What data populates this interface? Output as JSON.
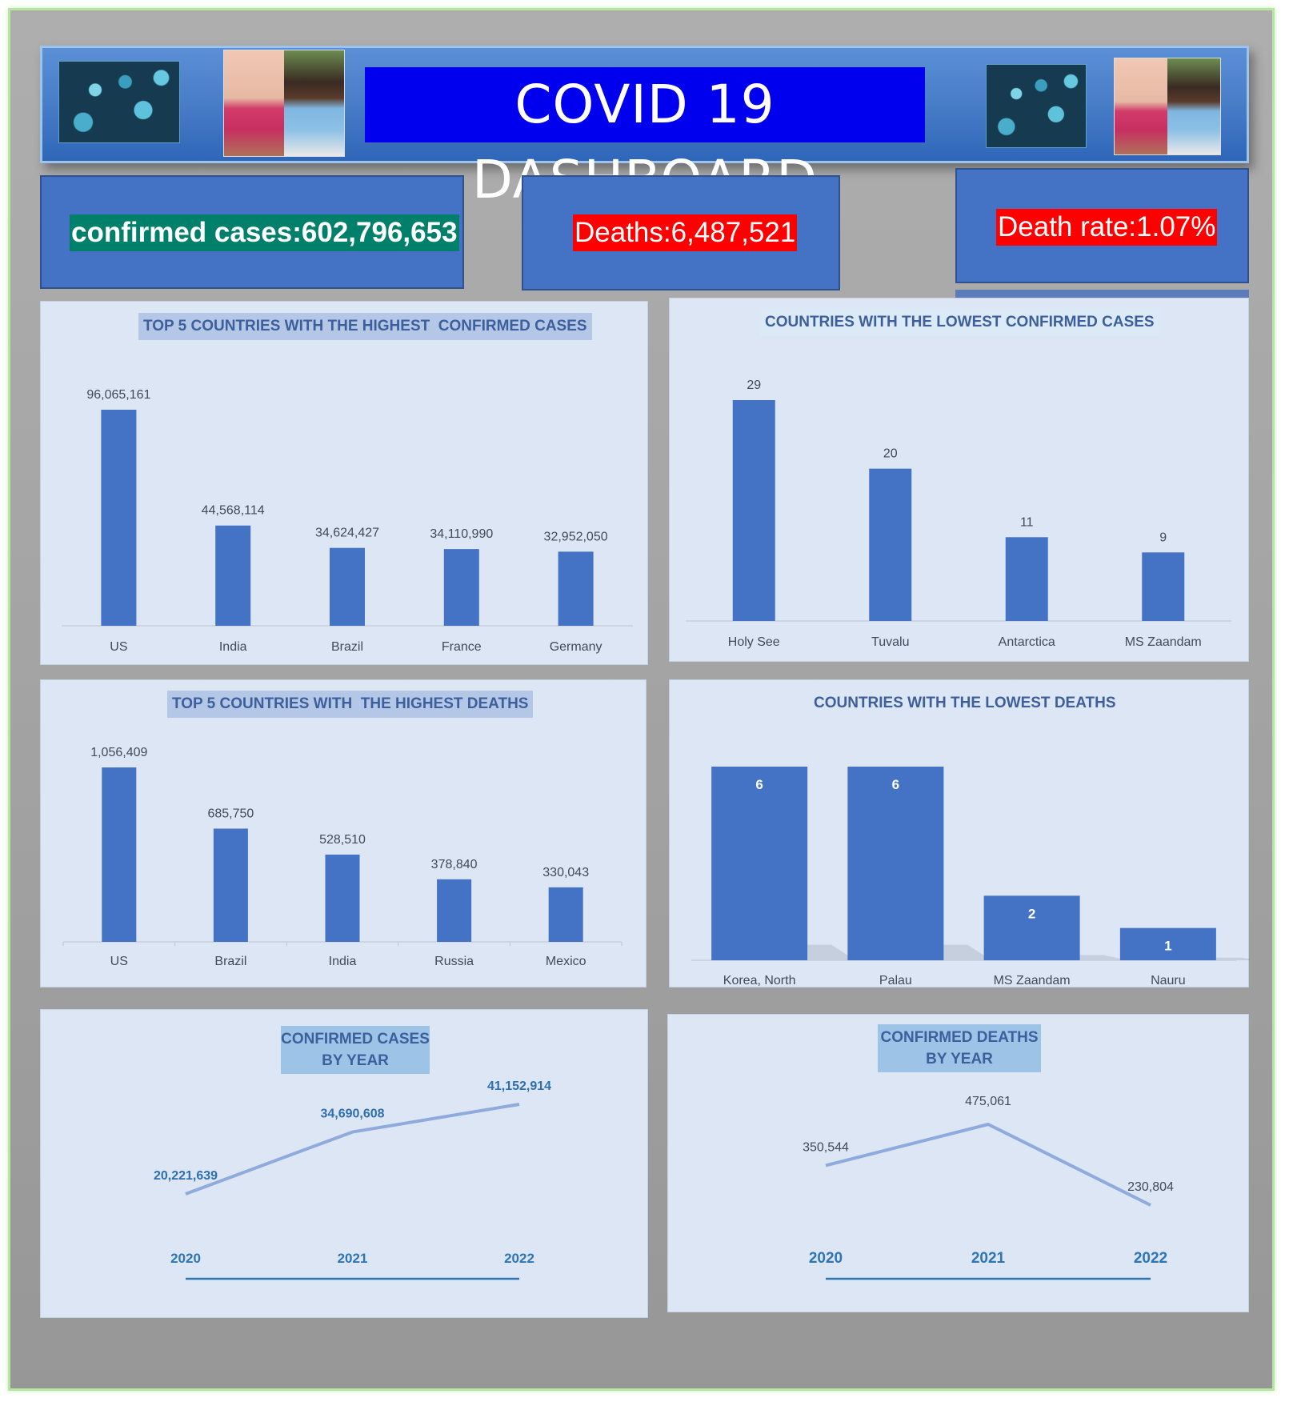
{
  "header": {
    "title": "COVID 19 DASHBOARD",
    "decor_icons": [
      "virus-image",
      "masked-people-image"
    ]
  },
  "kpis": {
    "confirmed": "confirmed cases:602,796,653",
    "deaths": "Deaths:6,487,521",
    "death_rate": "Death rate:1.07%"
  },
  "colors": {
    "bar": "#4472c4",
    "panel": "#dce6f4",
    "kpi_card": "#4472c4",
    "confirmed_label_bg": "#00806a",
    "alert_label_bg": "#ff0000",
    "title_bg": "#0000ee",
    "line": "#8faadc"
  },
  "chart_data": [
    {
      "id": "top-confirmed",
      "type": "bar",
      "title": "TOP 5 COUNTRIES WITH THE HIGHEST  CONFIRMED CASES",
      "categories": [
        "US",
        "India",
        "Brazil",
        "France",
        "Germany"
      ],
      "values": [
        96065161,
        44568114,
        34624427,
        34110990,
        32952050
      ],
      "labels": [
        "96,065,161",
        "44,568,114",
        "34,624,427",
        "34,110,990",
        "32,952,050"
      ]
    },
    {
      "id": "lowest-confirmed",
      "type": "bar",
      "title": "COUNTRIES WITH THE LOWEST CONFIRMED CASES",
      "categories": [
        "Holy See",
        "Tuvalu",
        "Antarctica",
        "MS Zaandam"
      ],
      "values": [
        29,
        20,
        11,
        9
      ],
      "labels": [
        "29",
        "20",
        "11",
        "9"
      ]
    },
    {
      "id": "top-deaths",
      "type": "bar",
      "title": "TOP 5 COUNTRIES WITH  THE HIGHEST DEATHS",
      "categories": [
        "US",
        "Brazil",
        "India",
        "Russia",
        "Mexico"
      ],
      "values": [
        1056409,
        685750,
        528510,
        378840,
        330043
      ],
      "labels": [
        "1,056,409",
        "685,750",
        "528,510",
        "378,840",
        "330,043"
      ]
    },
    {
      "id": "lowest-deaths",
      "type": "bar",
      "title": "COUNTRIES WITH THE LOWEST DEATHS",
      "categories": [
        "Korea, North",
        "Palau",
        "MS Zaandam",
        "Nauru"
      ],
      "values": [
        6,
        6,
        2,
        1
      ],
      "labels": [
        "6",
        "6",
        "2",
        "1"
      ]
    },
    {
      "id": "cases-by-year",
      "type": "line",
      "title": "CONFIRMED CASES BY YEAR",
      "title_lines": [
        "CONFIRMED CASES",
        "BY YEAR"
      ],
      "x": [
        "2020",
        "2021",
        "2022"
      ],
      "values": [
        20221639,
        34690608,
        41152914
      ],
      "labels": [
        "20,221,639",
        "34,690,608",
        "41,152,914"
      ]
    },
    {
      "id": "deaths-by-year",
      "type": "line",
      "title": "CONFIRMED DEATHS BY YEAR",
      "title_lines": [
        "CONFIRMED DEATHS",
        "BY YEAR"
      ],
      "x": [
        "2020",
        "2021",
        "2022"
      ],
      "values": [
        350544,
        475061,
        230804
      ],
      "labels": [
        "350,544",
        "475,061",
        "230,804"
      ]
    }
  ]
}
